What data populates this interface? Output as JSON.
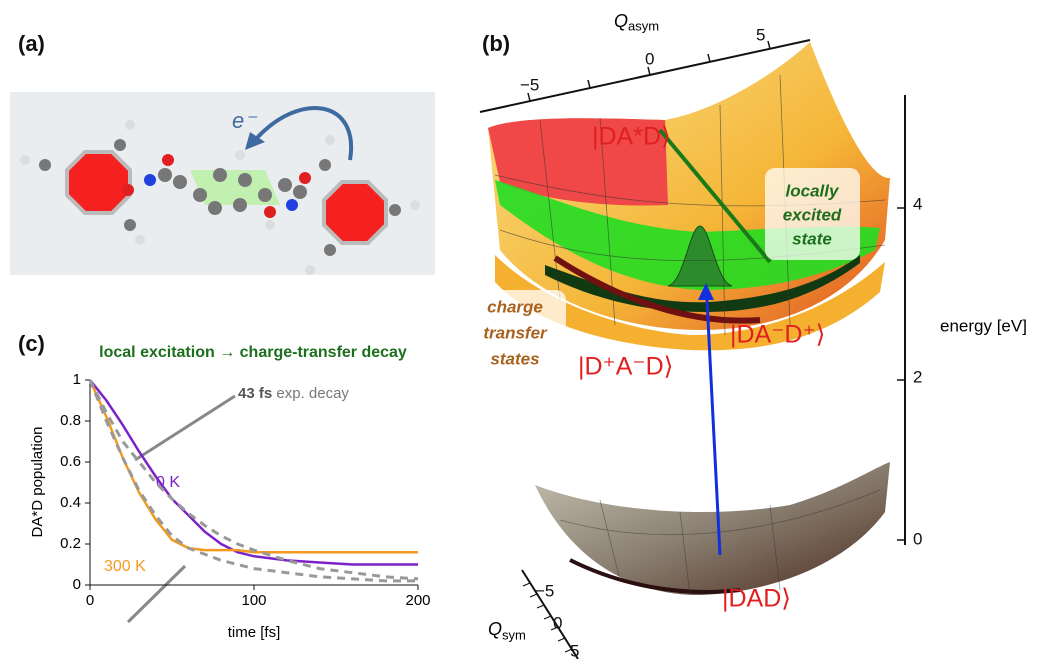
{
  "panel_a": {
    "label": "(a)",
    "electron": "e⁻"
  },
  "panel_b": {
    "label": "(b)",
    "q_asym": {
      "symbol": "Q",
      "subscript": "asym",
      "ticks": [
        "−5",
        "0",
        "5"
      ]
    },
    "q_sym": {
      "symbol": "Q",
      "subscript": "sym",
      "ticks": [
        "−5",
        "0",
        "5"
      ]
    },
    "energy_axis": {
      "label": "energy [eV]",
      "ticks": [
        "4",
        "2",
        "0"
      ]
    },
    "states": [
      "|DA*D⟩",
      "|DA⁻D⁺⟩",
      "|D⁺A⁻D⟩",
      "|DAD⟩"
    ],
    "locally_excited": [
      "locally",
      "excited",
      "state"
    ],
    "charge_transfer": [
      "charge",
      "transfer",
      "states"
    ]
  },
  "panel_c": {
    "label": "(c)",
    "annotation_bold": "43 fs",
    "annotation": "exp. decay"
  },
  "chart_data": {
    "type": "line",
    "title": "local excitation → charge-transfer decay",
    "xlabel": "time [fs]",
    "ylabel": "DA*D population",
    "x": [
      0,
      10,
      20,
      30,
      40,
      50,
      60,
      70,
      80,
      90,
      100,
      120,
      140,
      160,
      180,
      200
    ],
    "series": [
      {
        "name": "0 K",
        "color": "#7b22c8",
        "values": [
          1,
          0.9,
          0.78,
          0.65,
          0.53,
          0.42,
          0.34,
          0.26,
          0.2,
          0.16,
          0.14,
          0.12,
          0.11,
          0.1,
          0.1,
          0.1
        ]
      },
      {
        "name": "300 K",
        "color": "#f39a1e",
        "values": [
          1,
          0.82,
          0.62,
          0.45,
          0.32,
          0.22,
          0.18,
          0.17,
          0.17,
          0.17,
          0.16,
          0.16,
          0.16,
          0.16,
          0.16,
          0.16
        ]
      },
      {
        "color": "#999999",
        "dash": true,
        "values": [
          1,
          0.84,
          0.7,
          0.6,
          0.5,
          0.42,
          0.35,
          0.29,
          0.24,
          0.2,
          0.17,
          0.12,
          0.08,
          0.06,
          0.04,
          0.03
        ]
      },
      {
        "color": "#999999",
        "dash": true,
        "values": [
          1,
          0.8,
          0.62,
          0.46,
          0.34,
          0.24,
          0.18,
          0.15,
          0.12,
          0.1,
          0.08,
          0.06,
          0.04,
          0.03,
          0.02,
          0.02
        ]
      }
    ],
    "xlim": [
      0,
      200
    ],
    "xticks": [
      0,
      100,
      200
    ],
    "ylim": [
      0,
      1
    ],
    "yticks": [
      0,
      0.2,
      0.4,
      0.6,
      0.8,
      1
    ]
  }
}
